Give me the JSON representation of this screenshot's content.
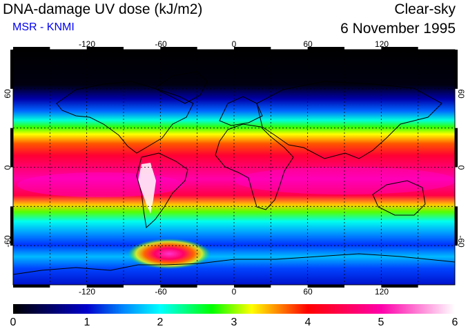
{
  "header": {
    "title": "DNA-damage UV dose (kJ/m2)",
    "source": "MSR - KNMI",
    "sky_condition": "Clear-sky",
    "date": "6 November 1995"
  },
  "map": {
    "lon_ticks_top": [
      "-120",
      "-60",
      "0",
      "60",
      "120"
    ],
    "lon_ticks_bottom": [
      "-120",
      "-60",
      "0",
      "60",
      "120"
    ],
    "lat_ticks_left": [
      "60",
      "0",
      "-60"
    ],
    "lat_ticks_right": [
      "60",
      "0",
      "-60"
    ],
    "lon_range": [
      -180,
      180
    ],
    "lat_range": [
      -90,
      90
    ]
  },
  "colorbar": {
    "labels": [
      "0",
      "1",
      "2",
      "3",
      "4",
      "5",
      "6"
    ],
    "min": 0,
    "max": 6,
    "colors": [
      "#000000",
      "#0000cc",
      "#0088ff",
      "#00ffff",
      "#00ff00",
      "#ffff00",
      "#ff0000",
      "#ff00aa",
      "#ffffff"
    ]
  }
}
